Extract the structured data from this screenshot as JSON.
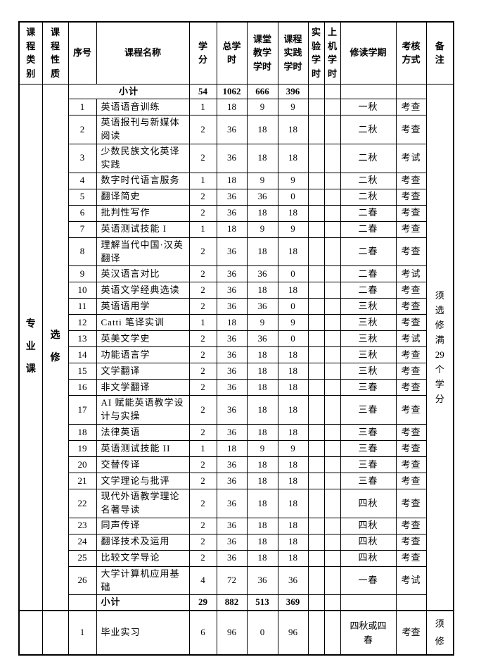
{
  "table": {
    "headers": {
      "category": "课程类别",
      "nature": "课程性质",
      "no": "序号",
      "course_name": "课程名称",
      "credits": "学分",
      "total_hours": "总学时",
      "classroom_hours": "课堂教学学时",
      "practice_hours": "课程实践学时",
      "experiment_hours": "实验学时",
      "computer_hours": "上机学时",
      "semester": "修读学期",
      "assessment": "考核方式",
      "notes": "备注"
    },
    "section": {
      "category": "专业课",
      "nature": "选修",
      "note": "须选修满29个学分",
      "subtotal_top": {
        "label": "小计",
        "credits": "54",
        "total_hours": "1062",
        "classroom_hours": "666",
        "practice_hours": "396"
      },
      "subtotal_bottom": {
        "label": "小计",
        "credits": "29",
        "total_hours": "882",
        "classroom_hours": "513",
        "practice_hours": "369"
      },
      "courses": [
        {
          "no": "1",
          "name": "英语语音训练",
          "credits": "1",
          "total_hours": "18",
          "classroom_hours": "9",
          "practice_hours": "9",
          "semester": "一秋",
          "assessment": "考查"
        },
        {
          "no": "2",
          "name": "英语报刊与新媒体阅读",
          "credits": "2",
          "total_hours": "36",
          "classroom_hours": "18",
          "practice_hours": "18",
          "semester": "二秋",
          "assessment": "考查"
        },
        {
          "no": "3",
          "name": "少数民族文化英译实践",
          "credits": "2",
          "total_hours": "36",
          "classroom_hours": "18",
          "practice_hours": "18",
          "semester": "二秋",
          "assessment": "考试"
        },
        {
          "no": "4",
          "name": "数字时代语言服务",
          "credits": "1",
          "total_hours": "18",
          "classroom_hours": "9",
          "practice_hours": "9",
          "semester": "二秋",
          "assessment": "考查"
        },
        {
          "no": "5",
          "name": "翻译简史",
          "credits": "2",
          "total_hours": "36",
          "classroom_hours": "36",
          "practice_hours": "0",
          "semester": "二秋",
          "assessment": "考查"
        },
        {
          "no": "6",
          "name": "批判性写作",
          "credits": "2",
          "total_hours": "36",
          "classroom_hours": "18",
          "practice_hours": "18",
          "semester": "二春",
          "assessment": "考查"
        },
        {
          "no": "7",
          "name": "英语测试技能 I",
          "credits": "1",
          "total_hours": "18",
          "classroom_hours": "9",
          "practice_hours": "9",
          "semester": "二春",
          "assessment": "考查"
        },
        {
          "no": "8",
          "name": "理解当代中国·汉英翻译",
          "credits": "2",
          "total_hours": "36",
          "classroom_hours": "18",
          "practice_hours": "18",
          "semester": "二春",
          "assessment": "考查"
        },
        {
          "no": "9",
          "name": "英汉语言对比",
          "credits": "2",
          "total_hours": "36",
          "classroom_hours": "36",
          "practice_hours": "0",
          "semester": "二春",
          "assessment": "考试"
        },
        {
          "no": "10",
          "name": "英语文学经典选读",
          "credits": "2",
          "total_hours": "36",
          "classroom_hours": "18",
          "practice_hours": "18",
          "semester": "二春",
          "assessment": "考查"
        },
        {
          "no": "11",
          "name": "英语语用学",
          "credits": "2",
          "total_hours": "36",
          "classroom_hours": "36",
          "practice_hours": "0",
          "semester": "三秋",
          "assessment": "考查"
        },
        {
          "no": "12",
          "name": "Catti 笔译实训",
          "credits": "1",
          "total_hours": "18",
          "classroom_hours": "9",
          "practice_hours": "9",
          "semester": "三秋",
          "assessment": "考查"
        },
        {
          "no": "13",
          "name": "英美文学史",
          "credits": "2",
          "total_hours": "36",
          "classroom_hours": "36",
          "practice_hours": "0",
          "semester": "三秋",
          "assessment": "考试"
        },
        {
          "no": "14",
          "name": "功能语言学",
          "credits": "2",
          "total_hours": "36",
          "classroom_hours": "18",
          "practice_hours": "18",
          "semester": "三秋",
          "assessment": "考查"
        },
        {
          "no": "15",
          "name": "文学翻译",
          "credits": "2",
          "total_hours": "36",
          "classroom_hours": "18",
          "practice_hours": "18",
          "semester": "三秋",
          "assessment": "考查"
        },
        {
          "no": "16",
          "name": "非文学翻译",
          "credits": "2",
          "total_hours": "36",
          "classroom_hours": "18",
          "practice_hours": "18",
          "semester": "三春",
          "assessment": "考查"
        },
        {
          "no": "17",
          "name": "AI 赋能英语教学设计与实操",
          "credits": "2",
          "total_hours": "36",
          "classroom_hours": "18",
          "practice_hours": "18",
          "semester": "三春",
          "assessment": "考查"
        },
        {
          "no": "18",
          "name": "法律英语",
          "credits": "2",
          "total_hours": "36",
          "classroom_hours": "18",
          "practice_hours": "18",
          "semester": "三春",
          "assessment": "考查"
        },
        {
          "no": "19",
          "name": "英语测试技能 II",
          "credits": "1",
          "total_hours": "18",
          "classroom_hours": "9",
          "practice_hours": "9",
          "semester": "三春",
          "assessment": "考查"
        },
        {
          "no": "20",
          "name": "交替传译",
          "credits": "2",
          "total_hours": "36",
          "classroom_hours": "18",
          "practice_hours": "18",
          "semester": "三春",
          "assessment": "考查"
        },
        {
          "no": "21",
          "name": "文学理论与批评",
          "credits": "2",
          "total_hours": "36",
          "classroom_hours": "18",
          "practice_hours": "18",
          "semester": "三春",
          "assessment": "考查"
        },
        {
          "no": "22",
          "name": "现代外语教学理论名著导读",
          "credits": "2",
          "total_hours": "36",
          "classroom_hours": "18",
          "practice_hours": "18",
          "semester": "四秋",
          "assessment": "考查"
        },
        {
          "no": "23",
          "name": "同声传译",
          "credits": "2",
          "total_hours": "36",
          "classroom_hours": "18",
          "practice_hours": "18",
          "semester": "四秋",
          "assessment": "考查"
        },
        {
          "no": "24",
          "name": "翻译技术及运用",
          "credits": "2",
          "total_hours": "36",
          "classroom_hours": "18",
          "practice_hours": "18",
          "semester": "四秋",
          "assessment": "考查"
        },
        {
          "no": "25",
          "name": "比较文学导论",
          "credits": "2",
          "total_hours": "36",
          "classroom_hours": "18",
          "practice_hours": "18",
          "semester": "四秋",
          "assessment": "考查"
        },
        {
          "no": "26",
          "name": "大学计算机应用基础",
          "credits": "4",
          "total_hours": "72",
          "classroom_hours": "36",
          "practice_hours": "36",
          "semester": "一春",
          "assessment": "考试"
        }
      ]
    },
    "next_section": {
      "first_course": {
        "no": "1",
        "name": "毕业实习",
        "credits": "6",
        "total_hours": "96",
        "classroom_hours": "0",
        "practice_hours": "96",
        "semester": "四秋或四春",
        "assessment": "考查",
        "note": "须修"
      }
    }
  }
}
